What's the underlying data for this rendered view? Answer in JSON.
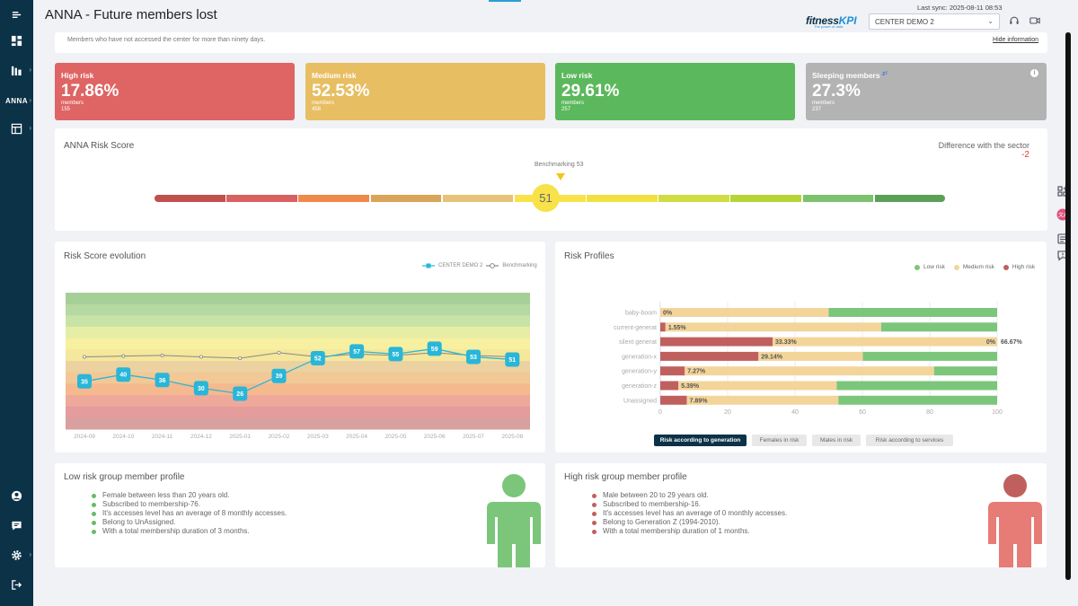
{
  "header": {
    "title": "ANNA - Future members lost",
    "brand_main": "fitness",
    "brand_accent": "KPI",
    "brand_tagline": "The power of data",
    "last_sync": "Last sync: 2025-08-11 08:53",
    "center_selected": "CENTER DEMO 2"
  },
  "sidebar": {
    "items": [
      {
        "icon": "menu-icon"
      },
      {
        "icon": "dashboard-icon"
      },
      {
        "icon": "reports-icon"
      },
      {
        "label": "ANNA"
      },
      {
        "icon": "table-icon"
      },
      {
        "icon": "user-icon"
      },
      {
        "icon": "messages-icon"
      },
      {
        "icon": "settings-icon"
      },
      {
        "icon": "logout-icon"
      }
    ]
  },
  "subtitle": {
    "text": "Members who have not accessed the center for more than ninety days.",
    "hide_link": "Hide information"
  },
  "kpis": [
    {
      "label": "High risk",
      "percent": "17.86%",
      "members_label": "members",
      "members": "155",
      "color": "#df6464"
    },
    {
      "label": "Medium risk",
      "percent": "52.53%",
      "members_label": "members",
      "members": "458",
      "color": "#e8be63"
    },
    {
      "label": "Low risk",
      "percent": "29.61%",
      "members_label": "members",
      "members": "257",
      "color": "#5cb85c"
    },
    {
      "label": "Sleeping members",
      "percent": "27.3%",
      "members_label": "members",
      "members": "237",
      "color": "#b3b3b3"
    }
  ],
  "risk_score": {
    "title": "ANNA Risk Score",
    "difference_label": "Difference with the sector",
    "difference_value": "-2",
    "benchmark_label": "Benchmarking 53",
    "score": "51",
    "segment_colors": [
      "#c0504d",
      "#d96161",
      "#ef8a4b",
      "#d9a55a",
      "#e7c37a",
      "#f8e24a",
      "#f0e040",
      "#cfdc42",
      "#b6d438",
      "#7cc26f",
      "#5aa157"
    ]
  },
  "evolution": {
    "title": "Risk Score evolution",
    "legend_center": "CENTER DEMO 2",
    "legend_bench": "Benchmarking"
  },
  "profiles": {
    "title": "Risk Profiles",
    "legend": [
      "Low risk",
      "Medium risk",
      "High risk"
    ],
    "buttons": [
      "Risk according to generation",
      "Females in risk",
      "Males in risk",
      "Risk according to services"
    ]
  },
  "low_profile": {
    "title": "Low risk group member profile",
    "items": [
      "Female between less than 20 years old.",
      "Subscribed to membership-76.",
      "It's accesses level has an average of 8 monthly accesses.",
      "Belong to UnAssigned.",
      "With a total membership duration of 3 months."
    ],
    "figure_color": "#7bc67b"
  },
  "high_profile": {
    "title": "High risk group member profile",
    "items": [
      "Male between 20 to 29 years old.",
      "Subscribed to membership-16.",
      "It's accesses level has an average of 0 monthly accesses.",
      "Belong to Generation Z (1994-2010).",
      "With a total membership duration of 1 months."
    ],
    "figure_color": "#e77b75"
  },
  "chart_data": [
    {
      "type": "line",
      "x": [
        "2024-09",
        "2024-10",
        "2024-11",
        "2024-12",
        "2025-01",
        "2025-02",
        "2025-03",
        "2025-04",
        "2025-05",
        "2025-06",
        "2025-07",
        "2025-08"
      ],
      "series": [
        {
          "name": "CENTER DEMO 2",
          "values": [
            35,
            40,
            36,
            30,
            26,
            39,
            52,
            57,
            55,
            59,
            53,
            51
          ],
          "color": "#29b6d8"
        },
        {
          "name": "Benchmarking",
          "values": [
            53,
            53.5,
            54,
            53,
            52,
            56,
            53,
            55,
            54,
            56,
            54,
            53
          ],
          "color": "#888888"
        }
      ],
      "ylim": [
        0,
        100
      ],
      "grid": false
    },
    {
      "type": "bar",
      "orientation": "horizontal",
      "stacked": true,
      "categories": [
        "baby-boom",
        "current-generat",
        "silent generat",
        "generation-x",
        "generation-y",
        "generation-z",
        "Unassigned"
      ],
      "series": [
        {
          "name": "High risk",
          "values": [
            0,
            1.55,
            33.33,
            29.14,
            7.27,
            5.39,
            7.89
          ],
          "color": "#c0605e"
        },
        {
          "name": "Medium risk",
          "values": [
            50,
            64,
            66.67,
            31,
            74,
            47,
            45
          ],
          "color": "#f3d59a"
        },
        {
          "name": "Low risk",
          "values": [
            50,
            34.45,
            0,
            39.86,
            18.73,
            47.61,
            47.11
          ],
          "color": "#7bc67b"
        }
      ],
      "data_labels": {
        "high": [
          "0%",
          "1.55%",
          "33.33%",
          "29.14%",
          "7.27%",
          "5.39%",
          "7.89%"
        ],
        "low": [
          "",
          "",
          "0%",
          "",
          "",
          "",
          ""
        ],
        "end": [
          "",
          "",
          "66.67%",
          "",
          "",
          "",
          ""
        ]
      },
      "xticks": [
        "0",
        "20",
        "40",
        "60",
        "80",
        "100"
      ],
      "xlim": [
        0,
        100
      ],
      "legend": "top-right"
    }
  ]
}
